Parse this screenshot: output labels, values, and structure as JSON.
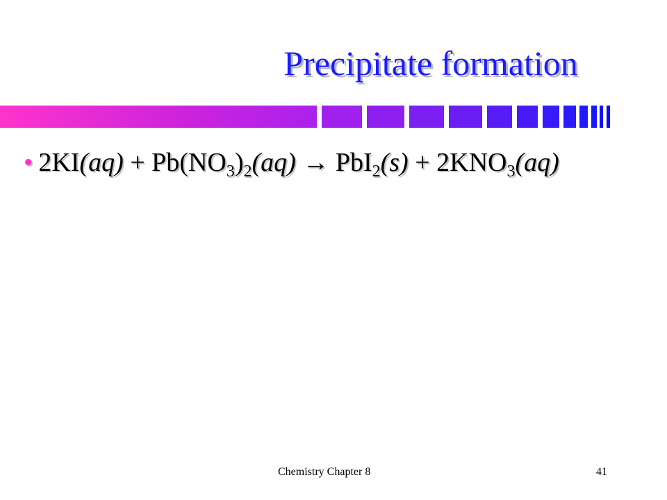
{
  "slide": {
    "title": "Precipitate formation",
    "bullets": [
      {
        "segments": [
          {
            "text": "2KI",
            "format": "normal"
          },
          {
            "text": "(aq)",
            "format": "italic"
          },
          {
            "text": " + Pb(NO",
            "format": "normal"
          },
          {
            "text": "3",
            "format": "sub"
          },
          {
            "text": ")",
            "format": "normal"
          },
          {
            "text": "2",
            "format": "sub"
          },
          {
            "text": "(aq)",
            "format": "italic"
          },
          {
            "text": " → ",
            "format": "normal"
          },
          {
            "text": "PbI",
            "format": "normal"
          },
          {
            "text": "2",
            "format": "sub"
          },
          {
            "text": "(s)",
            "format": "italic"
          },
          {
            "text": " + 2KNO",
            "format": "normal"
          },
          {
            "text": "3",
            "format": "sub"
          },
          {
            "text": "(aq)",
            "format": "italic"
          }
        ]
      }
    ],
    "footer": "Chemistry Chapter 8",
    "page_number": "41"
  }
}
